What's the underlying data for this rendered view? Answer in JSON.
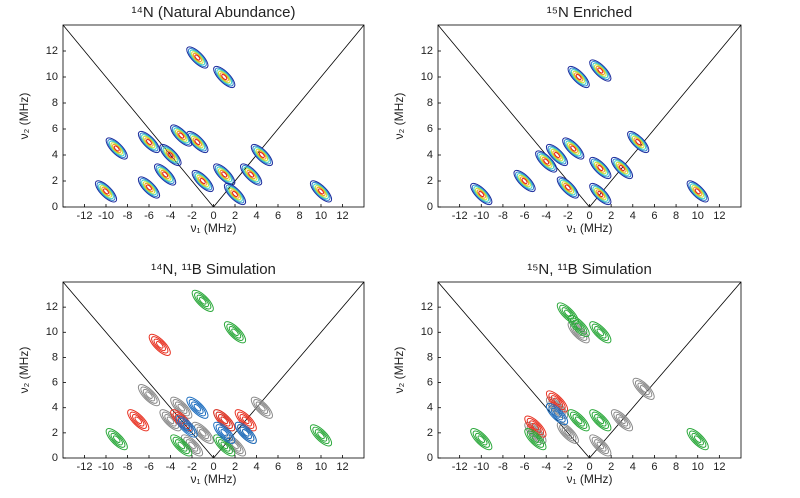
{
  "chart_data": [
    {
      "type": "contour",
      "title": "¹⁴N (Natural Abundance)",
      "x_label": "ν₁ (MHz)",
      "y_label": "ν₂ (MHz)",
      "colormap": "jet",
      "xlim": [
        -14,
        14
      ],
      "ylim": [
        0,
        14
      ],
      "xticks": [
        -12,
        -10,
        -8,
        -6,
        -4,
        -2,
        0,
        2,
        4,
        6,
        8,
        10,
        12
      ],
      "yticks": [
        0,
        2,
        4,
        6,
        8,
        10,
        12
      ],
      "series": [
        {
          "color": "#1a2a9c",
          "x": [
            -10,
            -6,
            -4.5,
            -1.5,
            -1,
            -6,
            -4,
            -9,
            -1.5,
            1,
            1,
            2,
            3.5,
            4.5,
            10,
            -3
          ],
          "y": [
            1.2,
            1.5,
            2.5,
            5,
            2,
            5,
            4,
            4.5,
            11.5,
            10,
            2.5,
            1,
            2.5,
            4,
            1.2,
            5.5
          ]
        }
      ]
    },
    {
      "type": "contour",
      "title": "¹⁵N Enriched",
      "x_label": "ν₁ (MHz)",
      "y_label": "ν₂ (MHz)",
      "colormap": "jet",
      "xlim": [
        -14,
        14
      ],
      "ylim": [
        0,
        14
      ],
      "xticks": [
        -12,
        -10,
        -8,
        -6,
        -4,
        -2,
        0,
        2,
        4,
        6,
        8,
        10,
        12
      ],
      "yticks": [
        0,
        2,
        4,
        6,
        8,
        10,
        12
      ],
      "series": [
        {
          "color": "#1a2a9c",
          "x": [
            -1,
            1,
            -10,
            -6,
            -4,
            -3,
            -1.5,
            -2,
            1,
            1,
            3,
            4.5,
            10
          ],
          "y": [
            10,
            10.5,
            1,
            2,
            3.5,
            4,
            4.5,
            1.5,
            3,
            1,
            3,
            5,
            1.2
          ]
        }
      ]
    },
    {
      "type": "contour",
      "title": "¹⁴N, ¹¹B Simulation",
      "x_label": "ν₁ (MHz)",
      "y_label": "ν₂ (MHz)",
      "xlim": [
        -14,
        14
      ],
      "ylim": [
        0,
        14
      ],
      "xticks": [
        -12,
        -10,
        -8,
        -6,
        -4,
        -2,
        0,
        2,
        4,
        6,
        8,
        10,
        12
      ],
      "yticks": [
        0,
        2,
        4,
        6,
        8,
        10,
        12
      ],
      "series": [
        {
          "color": "#8a8a8a",
          "x": [
            -6,
            -3,
            -1,
            1,
            3,
            4.5,
            -4,
            2,
            -2
          ],
          "y": [
            5,
            4,
            2,
            3,
            2,
            4,
            3,
            1,
            1
          ]
        },
        {
          "color": "#e83020",
          "x": [
            -5,
            -3,
            1,
            3,
            -7
          ],
          "y": [
            9,
            3,
            3,
            3,
            3
          ]
        },
        {
          "color": "#2aa83a",
          "x": [
            -9,
            -1,
            2,
            10,
            -3,
            1
          ],
          "y": [
            1.5,
            12.5,
            10,
            1.8,
            1,
            1
          ]
        },
        {
          "color": "#1f6fc0",
          "x": [
            -2.5,
            -1.5,
            1,
            3
          ],
          "y": [
            2.5,
            4,
            2,
            2
          ]
        }
      ]
    },
    {
      "type": "contour",
      "title": "¹⁵N, ¹¹B Simulation",
      "x_label": "ν₁ (MHz)",
      "y_label": "ν₂ (MHz)",
      "xlim": [
        -14,
        14
      ],
      "ylim": [
        0,
        14
      ],
      "xticks": [
        -12,
        -10,
        -8,
        -6,
        -4,
        -2,
        0,
        2,
        4,
        6,
        8,
        10,
        12
      ],
      "yticks": [
        0,
        2,
        4,
        6,
        8,
        10,
        12
      ],
      "series": [
        {
          "color": "#8a8a8a",
          "x": [
            -1,
            -5,
            -3,
            -2,
            1,
            3,
            5
          ],
          "y": [
            10,
            2,
            4,
            2,
            1,
            3,
            5.5
          ]
        },
        {
          "color": "#e83020",
          "x": [
            -5,
            -3
          ],
          "y": [
            2.5,
            4.5
          ]
        },
        {
          "color": "#2aa83a",
          "x": [
            -10,
            -1,
            1,
            -5,
            -1,
            1,
            10,
            -2
          ],
          "y": [
            1.5,
            10.5,
            10,
            1.5,
            3,
            3,
            1.5,
            11.5
          ]
        },
        {
          "color": "#1f6fc0",
          "x": [
            -3
          ],
          "y": [
            3.5
          ]
        }
      ]
    }
  ]
}
